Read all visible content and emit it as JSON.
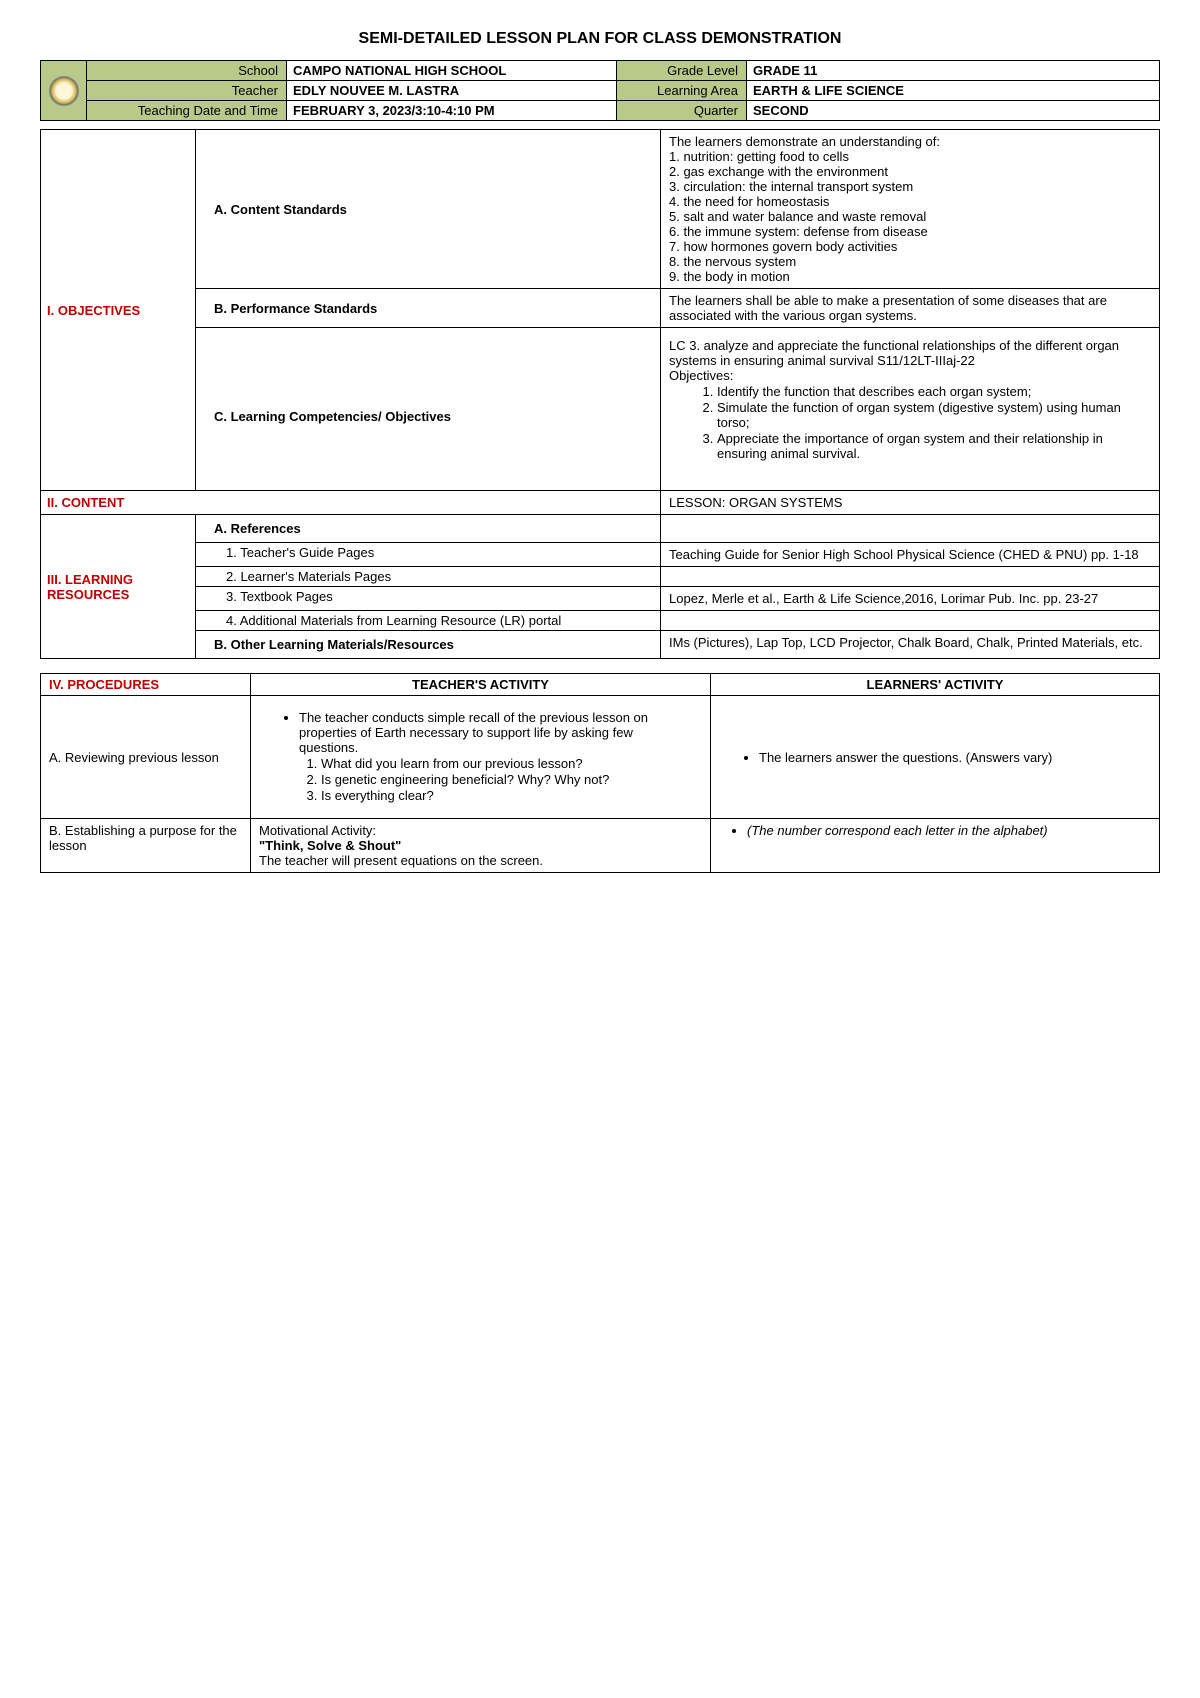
{
  "title": "SEMI-DETAILED LESSON PLAN FOR CLASS DEMONSTRATION",
  "header": {
    "school_lbl": "School",
    "school": "CAMPO NATIONAL HIGH SCHOOL",
    "grade_lbl": "Grade Level",
    "grade": "GRADE 11",
    "teacher_lbl": "Teacher",
    "teacher": "EDLY NOUVEE M. LASTRA",
    "area_lbl": "Learning Area",
    "area": "EARTH & LIFE SCIENCE",
    "datetime_lbl": "Teaching Date and Time",
    "datetime": "FEBRUARY 3, 2023/3:10-4:10 PM",
    "quarter_lbl": "Quarter",
    "quarter": "SECOND"
  },
  "sections": {
    "objectives": "I. OBJECTIVES",
    "content": "II. CONTENT",
    "resources": "III. LEARNING RESOURCES",
    "procedures": "IV. PROCEDURES"
  },
  "obj": {
    "a_lbl": "A. Content Standards",
    "a_intro": "The learners demonstrate an understanding of:",
    "a_items": [
      "1. nutrition: getting food to cells",
      "2. gas exchange with the environment",
      "3. circulation: the internal transport system",
      "4. the need for homeostasis",
      "5. salt and water balance and waste removal",
      "6. the immune system: defense from disease",
      "7. how hormones govern body activities",
      "8. the nervous system",
      "9. the body in motion"
    ],
    "b_lbl": "B. Performance Standards",
    "b_text": "The learners shall be able to make a presentation of some diseases that are associated with the various organ systems.",
    "c_lbl": "C. Learning Competencies/ Objectives",
    "c_intro1": "LC 3. analyze and appreciate the functional relationships of the different organ systems in ensuring animal survival S11/12LT-IIIaj-22",
    "c_intro2": "Objectives:",
    "c_items": [
      "Identify the function that describes each organ system;",
      "Simulate the function of organ system (digestive system) using human torso;",
      "Appreciate the importance of organ system and their relationship in ensuring animal survival."
    ]
  },
  "content_row": {
    "lesson": "LESSON: ORGAN SYSTEMS"
  },
  "res": {
    "a_lbl": "A. References",
    "r1_lbl": "1.   Teacher's Guide Pages",
    "r1_val": "Teaching Guide for Senior High School Physical Science (CHED & PNU) pp. 1-18",
    "r2_lbl": "2.   Learner's Materials Pages",
    "r2_val": "",
    "r3_lbl": "3.   Textbook Pages",
    "r3_val": "Lopez, Merle et al., Earth & Life Science,2016, Lorimar Pub. Inc. pp. 23-27",
    "r4_lbl": "4.   Additional Materials from Learning Resource (LR) portal",
    "r4_val": "",
    "b_lbl": "B. Other Learning Materials/Resources",
    "b_val": "IMs (Pictures), Lap Top, LCD Projector, Chalk Board, Chalk, Printed Materials, etc."
  },
  "proc": {
    "col1": "TEACHER'S ACTIVITY",
    "col2": "LEARNERS' ACTIVITY",
    "a_lbl": "A. Reviewing previous lesson",
    "a_t_bullet": "The teacher conducts simple recall of the previous lesson on properties of Earth necessary to support life by asking few questions.",
    "a_t_items": [
      "What did you learn from our previous lesson?",
      "Is genetic engineering beneficial? Why? Why not?",
      "Is everything clear?"
    ],
    "a_l_bullet": "The learners answer the questions. (Answers vary)",
    "b_lbl": "B. Establishing a purpose for the lesson",
    "b_t_line1": "Motivational Activity:",
    "b_t_line2": "\"Think, Solve & Shout\"",
    "b_t_line3": "The teacher will present equations on the screen.",
    "b_l_bullet": "(The number correspond each letter in the alphabet)"
  },
  "colors": {
    "header_bg": "#b8c98a",
    "red": "#c00000",
    "border": "#000000"
  }
}
